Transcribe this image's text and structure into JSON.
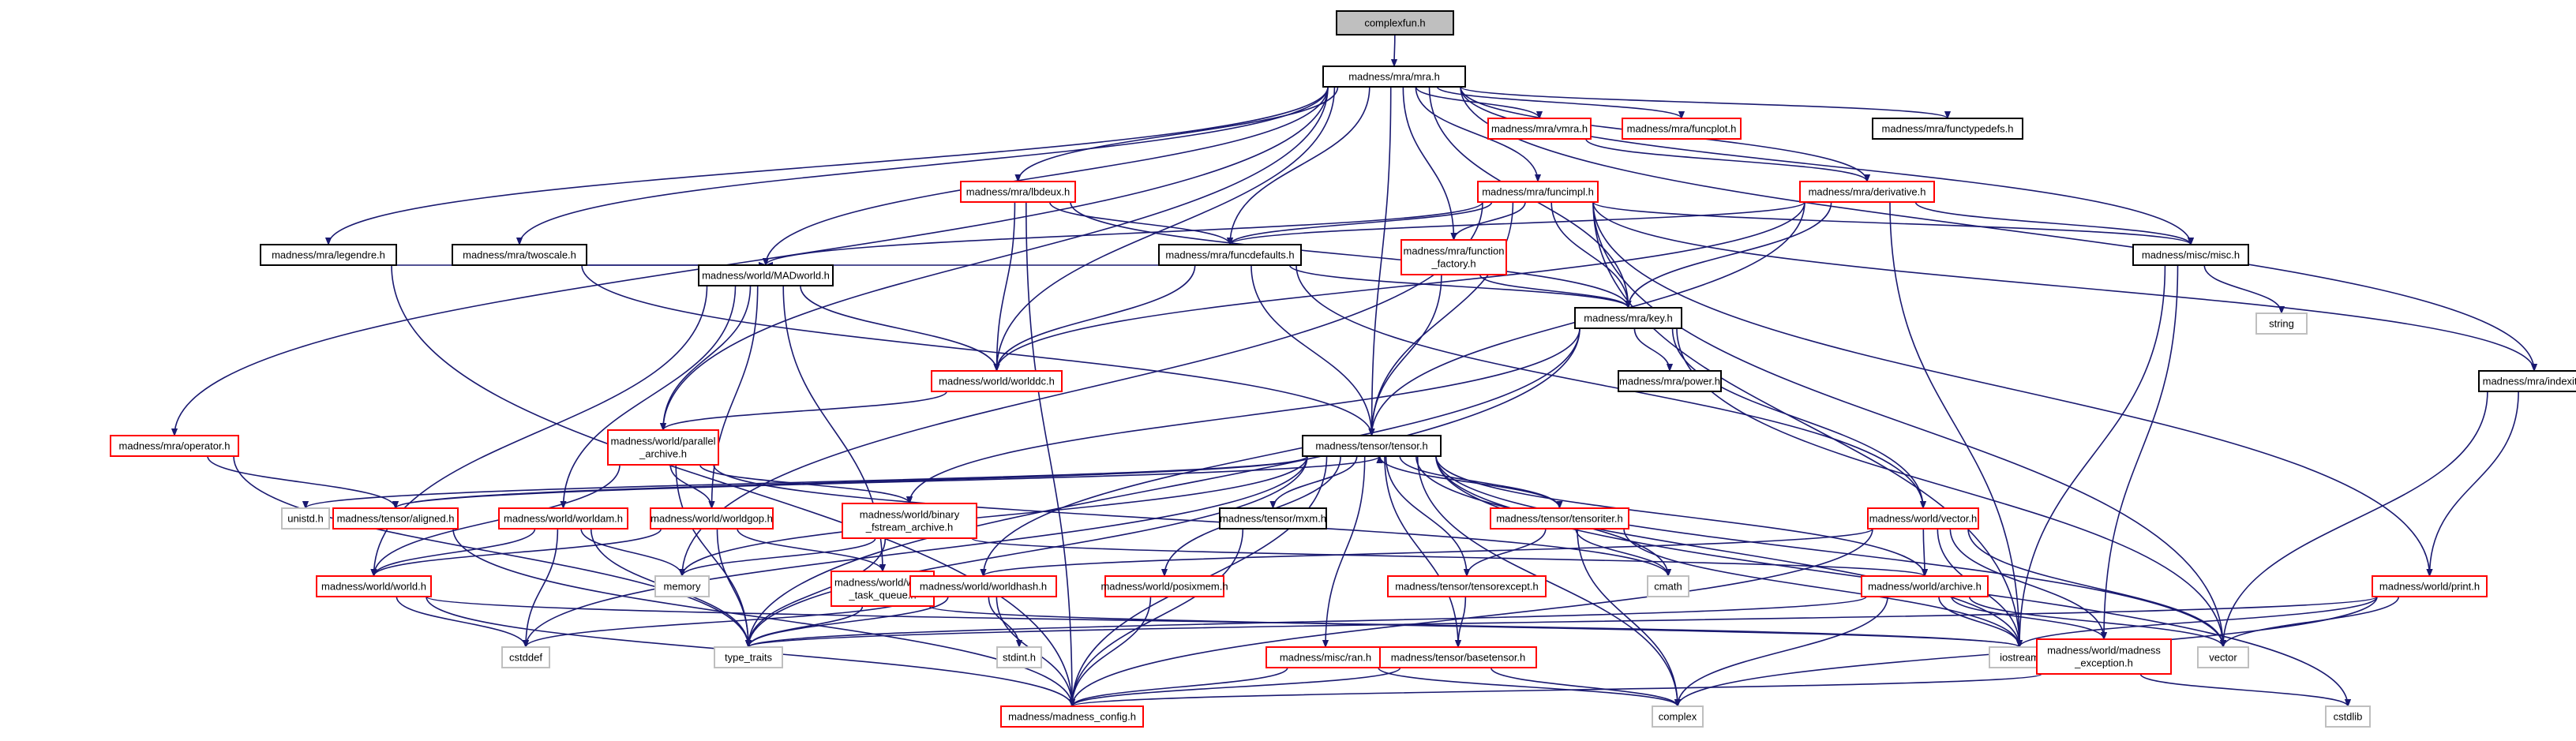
{
  "graph": {
    "root": "complexfun.h",
    "colors": {
      "edge": "#191970",
      "root_fill": "#bfbfbf",
      "normal_border": "#000000",
      "red_border": "#ff0000",
      "system_border": "#bfbfbf"
    },
    "nodes": [
      {
        "id": "complexfun",
        "lines": [
          "complexfun.h"
        ],
        "kind": "root"
      },
      {
        "id": "mra",
        "lines": [
          "madness/mra/mra.h"
        ],
        "kind": "normal"
      },
      {
        "id": "vmra",
        "lines": [
          "madness/mra/vmra.h"
        ],
        "kind": "red"
      },
      {
        "id": "funcplot",
        "lines": [
          "madness/mra/funcplot.h"
        ],
        "kind": "red"
      },
      {
        "id": "functypedefs",
        "lines": [
          "madness/mra/functypedefs.h"
        ],
        "kind": "normal"
      },
      {
        "id": "lbdeux",
        "lines": [
          "madness/mra/lbdeux.h"
        ],
        "kind": "red"
      },
      {
        "id": "funcimpl",
        "lines": [
          "madness/mra/funcimpl.h"
        ],
        "kind": "red"
      },
      {
        "id": "derivative",
        "lines": [
          "madness/mra/derivative.h"
        ],
        "kind": "red"
      },
      {
        "id": "legendre",
        "lines": [
          "madness/mra/legendre.h"
        ],
        "kind": "normal"
      },
      {
        "id": "twoscale",
        "lines": [
          "madness/mra/twoscale.h"
        ],
        "kind": "normal"
      },
      {
        "id": "funcdefaults",
        "lines": [
          "madness/mra/funcdefaults.h"
        ],
        "kind": "normal"
      },
      {
        "id": "function_factory",
        "lines": [
          "madness/mra/function",
          "_factory.h"
        ],
        "kind": "red"
      },
      {
        "id": "misc",
        "lines": [
          "madness/misc/misc.h"
        ],
        "kind": "normal"
      },
      {
        "id": "string",
        "lines": [
          "string"
        ],
        "kind": "system"
      },
      {
        "id": "madworld",
        "lines": [
          "madness/world/MADworld.h"
        ],
        "kind": "normal"
      },
      {
        "id": "key",
        "lines": [
          "madness/mra/key.h"
        ],
        "kind": "normal"
      },
      {
        "id": "worlddc",
        "lines": [
          "madness/world/worlddc.h"
        ],
        "kind": "red"
      },
      {
        "id": "power",
        "lines": [
          "madness/mra/power.h"
        ],
        "kind": "normal"
      },
      {
        "id": "indexit",
        "lines": [
          "madness/mra/indexit.h"
        ],
        "kind": "normal"
      },
      {
        "id": "operator",
        "lines": [
          "madness/mra/operator.h"
        ],
        "kind": "red"
      },
      {
        "id": "parallel_archive",
        "lines": [
          "madness/world/parallel",
          "_archive.h"
        ],
        "kind": "red"
      },
      {
        "id": "tensor",
        "lines": [
          "madness/tensor/tensor.h"
        ],
        "kind": "normal"
      },
      {
        "id": "unistd",
        "lines": [
          "unistd.h"
        ],
        "kind": "system"
      },
      {
        "id": "aligned",
        "lines": [
          "madness/tensor/aligned.h"
        ],
        "kind": "red"
      },
      {
        "id": "worldam",
        "lines": [
          "madness/world/worldam.h"
        ],
        "kind": "red"
      },
      {
        "id": "worldgop",
        "lines": [
          "madness/world/worldgop.h"
        ],
        "kind": "red"
      },
      {
        "id": "binary_fstream",
        "lines": [
          "madness/world/binary",
          "_fstream_archive.h"
        ],
        "kind": "red"
      },
      {
        "id": "mxm",
        "lines": [
          "madness/tensor/mxm.h"
        ],
        "kind": "normal"
      },
      {
        "id": "tensoriter",
        "lines": [
          "madness/tensor/tensoriter.h"
        ],
        "kind": "red"
      },
      {
        "id": "vector_h",
        "lines": [
          "madness/world/vector.h"
        ],
        "kind": "red"
      },
      {
        "id": "world_h",
        "lines": [
          "madness/world/world.h"
        ],
        "kind": "red"
      },
      {
        "id": "memory",
        "lines": [
          "memory"
        ],
        "kind": "system"
      },
      {
        "id": "world_task_queue",
        "lines": [
          "madness/world/world",
          "_task_queue.h"
        ],
        "kind": "red"
      },
      {
        "id": "worldhash",
        "lines": [
          "madness/world/worldhash.h"
        ],
        "kind": "red"
      },
      {
        "id": "posixmem",
        "lines": [
          "madness/world/posixmem.h"
        ],
        "kind": "red"
      },
      {
        "id": "tensorexcept",
        "lines": [
          "madness/tensor/tensorexcept.h"
        ],
        "kind": "red"
      },
      {
        "id": "cmath",
        "lines": [
          "cmath"
        ],
        "kind": "system"
      },
      {
        "id": "archive",
        "lines": [
          "madness/world/archive.h"
        ],
        "kind": "red"
      },
      {
        "id": "print",
        "lines": [
          "madness/world/print.h"
        ],
        "kind": "red"
      },
      {
        "id": "cstddef",
        "lines": [
          "cstddef"
        ],
        "kind": "system"
      },
      {
        "id": "type_traits",
        "lines": [
          "type_traits"
        ],
        "kind": "system"
      },
      {
        "id": "stdint",
        "lines": [
          "stdint.h"
        ],
        "kind": "system"
      },
      {
        "id": "iostream",
        "lines": [
          "iostream"
        ],
        "kind": "system"
      },
      {
        "id": "vector",
        "lines": [
          "vector"
        ],
        "kind": "system"
      },
      {
        "id": "ran",
        "lines": [
          "madness/misc/ran.h"
        ],
        "kind": "red"
      },
      {
        "id": "basetensor",
        "lines": [
          "madness/tensor/basetensor.h"
        ],
        "kind": "red"
      },
      {
        "id": "madness_exception",
        "lines": [
          "madness/world/madness",
          "_exception.h"
        ],
        "kind": "red"
      },
      {
        "id": "cstdlib",
        "lines": [
          "cstdlib"
        ],
        "kind": "system"
      },
      {
        "id": "madness_config",
        "lines": [
          "madness/madness_config.h"
        ],
        "kind": "red"
      },
      {
        "id": "complex",
        "lines": [
          "complex"
        ],
        "kind": "system"
      }
    ],
    "edges": [
      [
        "complexfun",
        "mra"
      ],
      [
        "mra",
        "vmra"
      ],
      [
        "mra",
        "funcplot"
      ],
      [
        "mra",
        "functypedefs"
      ],
      [
        "mra",
        "lbdeux"
      ],
      [
        "mra",
        "funcimpl"
      ],
      [
        "mra",
        "derivative"
      ],
      [
        "mra",
        "legendre"
      ],
      [
        "mra",
        "twoscale"
      ],
      [
        "mra",
        "funcdefaults"
      ],
      [
        "mra",
        "function_factory"
      ],
      [
        "mra",
        "misc"
      ],
      [
        "mra",
        "madworld"
      ],
      [
        "mra",
        "key"
      ],
      [
        "mra",
        "worlddc"
      ],
      [
        "mra",
        "indexit"
      ],
      [
        "mra",
        "operator"
      ],
      [
        "mra",
        "parallel_archive"
      ],
      [
        "mra",
        "tensor"
      ],
      [
        "vmra",
        "derivative"
      ],
      [
        "derivative",
        "funcdefaults"
      ],
      [
        "derivative",
        "misc"
      ],
      [
        "derivative",
        "key"
      ],
      [
        "derivative",
        "worlddc"
      ],
      [
        "derivative",
        "tensor"
      ],
      [
        "derivative",
        "iostream"
      ],
      [
        "funcimpl",
        "funcdefaults"
      ],
      [
        "funcimpl",
        "function_factory"
      ],
      [
        "funcimpl",
        "misc"
      ],
      [
        "funcimpl",
        "madworld"
      ],
      [
        "funcimpl",
        "key"
      ],
      [
        "funcimpl",
        "tensor"
      ],
      [
        "funcimpl",
        "indexit"
      ],
      [
        "funcimpl",
        "print"
      ],
      [
        "funcimpl",
        "memory"
      ],
      [
        "funcimpl",
        "iostream"
      ],
      [
        "funcimpl",
        "vector"
      ],
      [
        "lbdeux",
        "funcdefaults"
      ],
      [
        "lbdeux",
        "key"
      ],
      [
        "lbdeux",
        "worlddc"
      ],
      [
        "lbdeux",
        "madness_config"
      ],
      [
        "legendre",
        "madworld"
      ],
      [
        "legendre",
        "madness_config"
      ],
      [
        "twoscale",
        "madworld"
      ],
      [
        "twoscale",
        "tensor"
      ],
      [
        "funcdefaults",
        "madworld"
      ],
      [
        "funcdefaults",
        "key"
      ],
      [
        "funcdefaults",
        "worlddc"
      ],
      [
        "funcdefaults",
        "tensor"
      ],
      [
        "funcdefaults",
        "vector_h"
      ],
      [
        "function_factory",
        "key"
      ],
      [
        "function_factory",
        "tensor"
      ],
      [
        "misc",
        "string"
      ],
      [
        "misc",
        "iostream"
      ],
      [
        "misc",
        "madness_exception"
      ],
      [
        "madworld",
        "worlddc"
      ],
      [
        "madworld",
        "parallel_archive"
      ],
      [
        "madworld",
        "worldam"
      ],
      [
        "madworld",
        "worldgop"
      ],
      [
        "madworld",
        "world_h"
      ],
      [
        "madworld",
        "world_task_queue"
      ],
      [
        "key",
        "power"
      ],
      [
        "key",
        "vector_h"
      ],
      [
        "key",
        "binary_fstream"
      ],
      [
        "key",
        "worldhash"
      ],
      [
        "key",
        "type_traits"
      ],
      [
        "key",
        "vector"
      ],
      [
        "worlddc",
        "parallel_archive"
      ],
      [
        "indexit",
        "print"
      ],
      [
        "indexit",
        "vector"
      ],
      [
        "operator",
        "aligned"
      ],
      [
        "operator",
        "type_traits"
      ],
      [
        "parallel_archive",
        "worldgop"
      ],
      [
        "parallel_archive",
        "binary_fstream"
      ],
      [
        "parallel_archive",
        "world_h"
      ],
      [
        "parallel_archive",
        "type_traits"
      ],
      [
        "parallel_archive",
        "cmath"
      ],
      [
        "tensor",
        "unistd"
      ],
      [
        "tensor",
        "aligned"
      ],
      [
        "tensor",
        "mxm"
      ],
      [
        "tensor",
        "tensoriter"
      ],
      [
        "tensor",
        "posixmem"
      ],
      [
        "tensor",
        "tensorexcept"
      ],
      [
        "tensor",
        "ran"
      ],
      [
        "tensor",
        "basetensor"
      ],
      [
        "tensor",
        "archive"
      ],
      [
        "tensor",
        "cmath"
      ],
      [
        "tensor",
        "madness_config"
      ],
      [
        "tensor",
        "cstddef"
      ],
      [
        "tensor",
        "memory"
      ],
      [
        "tensor",
        "type_traits"
      ],
      [
        "tensor",
        "complex"
      ],
      [
        "tensor",
        "vector"
      ],
      [
        "tensor",
        "cstdlib"
      ],
      [
        "tensor",
        "iostream"
      ],
      [
        "aligned",
        "tensor"
      ],
      [
        "aligned",
        "madness_config"
      ],
      [
        "worldam",
        "world_h"
      ],
      [
        "worldam",
        "memory"
      ],
      [
        "worldam",
        "cstddef"
      ],
      [
        "worldam",
        "type_traits"
      ],
      [
        "worldgop",
        "world_h"
      ],
      [
        "worldgop",
        "world_task_queue"
      ],
      [
        "worldgop",
        "type_traits"
      ],
      [
        "binary_fstream",
        "archive"
      ],
      [
        "binary_fstream",
        "memory"
      ],
      [
        "binary_fstream",
        "type_traits"
      ],
      [
        "mxm",
        "madness_config"
      ],
      [
        "tensoriter",
        "tensor"
      ],
      [
        "tensoriter",
        "tensorexcept"
      ],
      [
        "tensoriter",
        "cmath"
      ],
      [
        "tensoriter",
        "iostream"
      ],
      [
        "tensoriter",
        "complex"
      ],
      [
        "vector_h",
        "archive"
      ],
      [
        "vector_h",
        "worldhash"
      ],
      [
        "vector_h",
        "madness_exception"
      ],
      [
        "vector_h",
        "iostream"
      ],
      [
        "vector_h",
        "vector"
      ],
      [
        "vector_h",
        "madness_config"
      ],
      [
        "world_h",
        "iostream"
      ],
      [
        "world_h",
        "cstddef"
      ],
      [
        "world_h",
        "madness_config"
      ],
      [
        "world_task_queue",
        "type_traits"
      ],
      [
        "world_task_queue",
        "iostream"
      ],
      [
        "worldhash",
        "madness_config"
      ],
      [
        "worldhash",
        "stdint"
      ],
      [
        "worldhash",
        "cstddef"
      ],
      [
        "worldhash",
        "type_traits"
      ],
      [
        "posixmem",
        "madness_config"
      ],
      [
        "tensorexcept",
        "basetensor"
      ],
      [
        "archive",
        "madness_exception"
      ],
      [
        "archive",
        "type_traits"
      ],
      [
        "archive",
        "complex"
      ],
      [
        "archive",
        "iostream"
      ],
      [
        "archive",
        "vector"
      ],
      [
        "print",
        "iostream"
      ],
      [
        "print",
        "vector"
      ],
      [
        "print",
        "type_traits"
      ],
      [
        "print",
        "complex"
      ],
      [
        "ran",
        "madness_config"
      ],
      [
        "ran",
        "complex"
      ],
      [
        "basetensor",
        "madness_config"
      ],
      [
        "basetensor",
        "complex"
      ],
      [
        "madness_exception",
        "madness_config"
      ],
      [
        "madness_exception",
        "cstdlib"
      ]
    ]
  }
}
